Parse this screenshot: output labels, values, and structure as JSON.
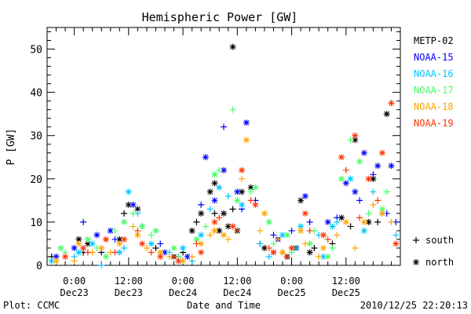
{
  "chart_data": {
    "type": "scatter",
    "title": "Hemispheric Power [GW]",
    "xlabel": "Date and Time",
    "ylabel": "P [GW]",
    "x_unit": "hours",
    "xlim": [
      -6,
      72
    ],
    "ylim": [
      0,
      55
    ],
    "x_ticks": [
      {
        "x": 0,
        "line1": "0:00",
        "line2": "Dec23"
      },
      {
        "x": 12,
        "line1": "12:00",
        "line2": "Dec23"
      },
      {
        "x": 24,
        "line1": "0:00",
        "line2": "Dec24"
      },
      {
        "x": 36,
        "line1": "12:00",
        "line2": "Dec24"
      },
      {
        "x": 48,
        "line1": "0:00",
        "line2": "Dec25"
      },
      {
        "x": 60,
        "line1": "12:00",
        "line2": "Dec25"
      }
    ],
    "y_ticks": [
      0,
      10,
      20,
      30,
      40,
      50
    ],
    "grid": false,
    "legend_position": "right",
    "marker_legend": [
      {
        "symbol": "+",
        "label": "south"
      },
      {
        "symbol": "*",
        "label": "north"
      }
    ],
    "series": [
      {
        "name": "METP-02",
        "color": "#000000",
        "north": [
          [
            1,
            6
          ],
          [
            3,
            5
          ],
          [
            10,
            6
          ],
          [
            12,
            14
          ],
          [
            14,
            13
          ],
          [
            22,
            2
          ],
          [
            26,
            8
          ],
          [
            28,
            12
          ],
          [
            30,
            17
          ],
          [
            31,
            19
          ],
          [
            32,
            8
          ],
          [
            33,
            12
          ],
          [
            34,
            9
          ],
          [
            35,
            50.5
          ],
          [
            36,
            8
          ],
          [
            37,
            17
          ],
          [
            39,
            18
          ],
          [
            42,
            4
          ],
          [
            44,
            3
          ],
          [
            47,
            2
          ],
          [
            49,
            4
          ],
          [
            50,
            15
          ],
          [
            52,
            3
          ],
          [
            59,
            11
          ],
          [
            62,
            29
          ],
          [
            65,
            10
          ],
          [
            66,
            20
          ],
          [
            69,
            35
          ]
        ],
        "south": [
          [
            -5,
            2
          ],
          [
            2,
            3
          ],
          [
            6,
            3
          ],
          [
            11,
            12
          ],
          [
            18,
            4
          ],
          [
            24,
            3
          ],
          [
            27,
            10
          ],
          [
            31,
            12
          ],
          [
            35,
            13
          ],
          [
            41,
            5
          ],
          [
            46,
            3
          ],
          [
            53,
            4
          ],
          [
            57,
            5
          ],
          [
            61,
            9
          ],
          [
            67,
            10
          ]
        ]
      },
      {
        "name": "NOAA-15",
        "color": "#0000ff",
        "north": [
          [
            -4,
            2
          ],
          [
            0,
            4
          ],
          [
            5,
            7
          ],
          [
            8,
            8
          ],
          [
            13,
            14
          ],
          [
            20,
            3
          ],
          [
            25,
            2
          ],
          [
            29,
            25
          ],
          [
            31,
            15
          ],
          [
            33,
            22
          ],
          [
            36,
            17
          ],
          [
            38,
            33
          ],
          [
            45,
            6
          ],
          [
            51,
            16
          ],
          [
            56,
            10
          ],
          [
            60,
            19
          ],
          [
            62,
            17
          ],
          [
            64,
            26
          ],
          [
            67,
            23
          ],
          [
            70,
            23
          ]
        ],
        "south": [
          [
            2,
            10
          ],
          [
            9,
            6
          ],
          [
            15,
            9
          ],
          [
            19,
            5
          ],
          [
            23,
            2
          ],
          [
            28,
            14
          ],
          [
            33,
            32
          ],
          [
            37,
            13
          ],
          [
            40,
            15
          ],
          [
            44,
            7
          ],
          [
            48,
            8
          ],
          [
            52,
            10
          ],
          [
            58,
            11
          ],
          [
            63,
            15
          ],
          [
            66,
            21
          ],
          [
            69,
            12
          ],
          [
            71,
            10
          ]
        ]
      },
      {
        "name": "NOAA-16",
        "color": "#00c8ff",
        "north": [
          [
            -5,
            1
          ],
          [
            1,
            3
          ],
          [
            4,
            5
          ],
          [
            10,
            3
          ],
          [
            12,
            17
          ],
          [
            17,
            5
          ],
          [
            24,
            4
          ],
          [
            28,
            7
          ],
          [
            32,
            18
          ],
          [
            37,
            14
          ],
          [
            46,
            7
          ],
          [
            50,
            9
          ],
          [
            55,
            2
          ],
          [
            57,
            9
          ],
          [
            61,
            20
          ],
          [
            64,
            8
          ],
          [
            68,
            12
          ]
        ],
        "south": [
          [
            0,
            2
          ],
          [
            6,
            0
          ],
          [
            11,
            4
          ],
          [
            14,
            12
          ],
          [
            21,
            3
          ],
          [
            26,
            1
          ],
          [
            30,
            13
          ],
          [
            34,
            16
          ],
          [
            41,
            5
          ],
          [
            43,
            2
          ],
          [
            49,
            4
          ],
          [
            54,
            7
          ],
          [
            58,
            10
          ],
          [
            66,
            17
          ],
          [
            71,
            7
          ]
        ]
      },
      {
        "name": "NOAA-17",
        "color": "#44ff66",
        "north": [
          [
            -3,
            4
          ],
          [
            3,
            6
          ],
          [
            7,
            2
          ],
          [
            11,
            10
          ],
          [
            15,
            9
          ],
          [
            18,
            8
          ],
          [
            22,
            4
          ],
          [
            27,
            6
          ],
          [
            31,
            21
          ],
          [
            36,
            15
          ],
          [
            40,
            18
          ],
          [
            43,
            10
          ],
          [
            47,
            7
          ],
          [
            52,
            5
          ],
          [
            56,
            2
          ],
          [
            59,
            20
          ],
          [
            63,
            24
          ],
          [
            68,
            13
          ]
        ],
        "south": [
          [
            -2,
            3
          ],
          [
            5,
            4
          ],
          [
            9,
            8
          ],
          [
            13,
            12
          ],
          [
            17,
            7
          ],
          [
            23,
            2
          ],
          [
            29,
            9
          ],
          [
            32,
            22
          ],
          [
            35,
            36
          ],
          [
            39,
            17
          ],
          [
            44,
            5
          ],
          [
            48,
            3
          ],
          [
            53,
            8
          ],
          [
            57,
            4
          ],
          [
            61,
            29
          ],
          [
            65,
            12
          ],
          [
            69,
            17
          ]
        ]
      },
      {
        "name": "NOAA-18",
        "color": "#ffa500",
        "north": [
          [
            -4,
            1
          ],
          [
            1,
            5
          ],
          [
            6,
            4
          ],
          [
            10,
            5
          ],
          [
            14,
            7
          ],
          [
            19,
            3
          ],
          [
            24,
            1
          ],
          [
            28,
            5
          ],
          [
            31,
            8
          ],
          [
            33,
            7
          ],
          [
            38,
            29
          ],
          [
            42,
            12
          ],
          [
            46,
            3
          ],
          [
            50,
            8
          ],
          [
            55,
            4
          ],
          [
            60,
            10
          ],
          [
            64,
            10
          ],
          [
            68,
            12
          ]
        ],
        "south": [
          [
            0,
            1
          ],
          [
            4,
            3
          ],
          [
            8,
            3
          ],
          [
            13,
            9
          ],
          [
            16,
            4
          ],
          [
            21,
            2
          ],
          [
            26,
            2
          ],
          [
            30,
            7
          ],
          [
            34,
            6
          ],
          [
            37,
            20
          ],
          [
            41,
            8
          ],
          [
            45,
            6
          ],
          [
            51,
            5
          ],
          [
            54,
            2
          ],
          [
            58,
            7
          ],
          [
            62,
            4
          ],
          [
            66,
            14
          ],
          [
            70,
            10
          ]
        ]
      },
      {
        "name": "NOAA-19",
        "color": "#ff3300",
        "north": [
          [
            -2,
            2
          ],
          [
            2,
            4
          ],
          [
            7,
            6
          ],
          [
            11,
            6
          ],
          [
            15,
            5
          ],
          [
            19,
            2
          ],
          [
            23,
            1
          ],
          [
            28,
            3
          ],
          [
            31,
            10
          ],
          [
            35,
            9
          ],
          [
            37,
            22
          ],
          [
            40,
            14
          ],
          [
            44,
            3
          ],
          [
            48,
            4
          ],
          [
            51,
            12
          ],
          [
            55,
            7
          ],
          [
            59,
            25
          ],
          [
            62,
            30
          ],
          [
            65,
            20
          ],
          [
            68,
            26
          ],
          [
            70,
            37.5
          ],
          [
            71,
            5
          ]
        ],
        "south": [
          [
            3,
            3
          ],
          [
            9,
            3
          ],
          [
            14,
            8
          ],
          [
            17,
            3
          ],
          [
            22,
            2
          ],
          [
            27,
            5
          ],
          [
            32,
            11
          ],
          [
            36,
            8
          ],
          [
            39,
            15
          ],
          [
            43,
            4
          ],
          [
            47,
            2
          ],
          [
            52,
            8
          ],
          [
            56,
            6
          ],
          [
            60,
            22
          ],
          [
            63,
            11
          ],
          [
            67,
            15
          ]
        ]
      }
    ]
  },
  "footer": {
    "plot_credit": "Plot: CCMC",
    "timestamp": "2010/12/25 22:20:13"
  }
}
